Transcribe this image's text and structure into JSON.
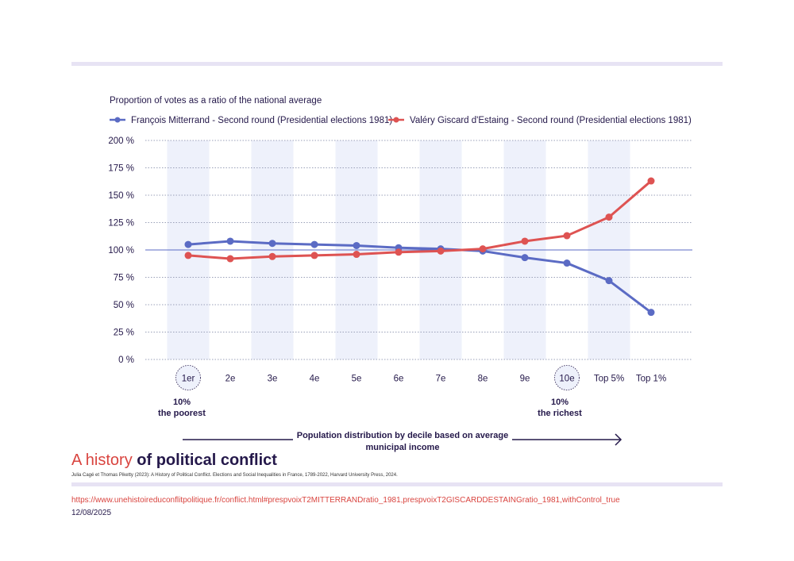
{
  "chart_data": {
    "type": "line",
    "ylabel": "Proportion of votes as a ratio of the national average",
    "categories": [
      "1er",
      "2e",
      "3e",
      "4e",
      "5e",
      "6e",
      "7e",
      "8e",
      "9e",
      "10e",
      "Top 5%",
      "Top 1%"
    ],
    "y_ticks": [
      "200 %",
      "175 %",
      "150 %",
      "125 %",
      "100 %",
      "75 %",
      "50 %",
      "25 %",
      "0 %"
    ],
    "ylim": [
      0,
      200
    ],
    "reference_line": 100,
    "grid": "dotted horizontal",
    "legend_position": "top",
    "series": [
      {
        "name": "François Mitterrand - Second round (Presidential elections 1981)",
        "color": "#5b6bc4",
        "values": [
          105,
          108,
          106,
          105,
          104,
          102,
          101,
          99,
          93,
          88,
          72,
          43
        ]
      },
      {
        "name": "Valéry Giscard d'Estaing - Second round (Presidential elections 1981)",
        "color": "#de5352",
        "values": [
          95,
          92,
          94,
          95,
          96,
          98,
          99,
          101,
          108,
          113,
          130,
          163
        ]
      }
    ],
    "annotations": {
      "poorest": [
        "10%",
        "the poorest"
      ],
      "richest": [
        "10%",
        "the richest"
      ],
      "xlabel": [
        "Population distribution by decile based on average",
        "municipal income"
      ]
    }
  },
  "footer": {
    "title_light": "A history",
    "title_bold": "of political conflict",
    "citation": "Julia Cagé et Thomas Piketty (2023): A History of Political Conflict. Elections and Social Inequalities in France, 1789-2022, Harvard University Press, 2024.",
    "url": "https://www.unehistoireduconflitpolitique.fr/conflict.html#prespvoixT2MITTERRANDratio_1981,prespvoixT2GISCARDDESTAINGratio_1981,withControl_true",
    "date": "12/08/2025"
  },
  "colors": {
    "band": "#eef1fb",
    "grid": "#9aa0b8",
    "reference": "#5b6bc4",
    "text": "#24184a",
    "accent": "#d9443f"
  }
}
